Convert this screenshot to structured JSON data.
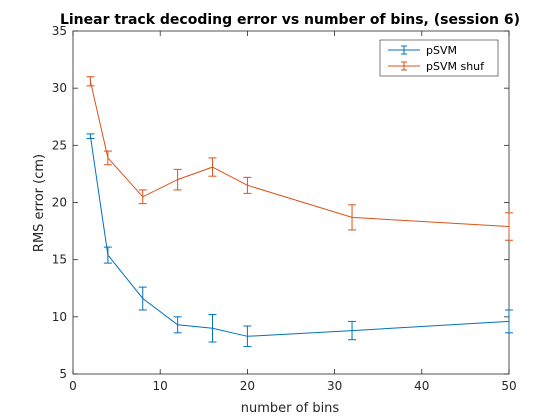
{
  "chart_data": {
    "type": "line",
    "title": "Linear track decoding error vs number of bins, (session 6)",
    "xlabel": "number of bins",
    "ylabel": "RMS error (cm)",
    "xlim": [
      0,
      50
    ],
    "ylim": [
      5,
      35
    ],
    "xticks": [
      0,
      10,
      20,
      30,
      40,
      50
    ],
    "yticks": [
      5,
      10,
      15,
      20,
      25,
      30,
      35
    ],
    "grid": false,
    "legend_position": "top-right",
    "x": [
      2,
      4,
      8,
      12,
      16,
      20,
      32,
      50
    ],
    "series": [
      {
        "name": "pSVM",
        "color": "#0072BD",
        "values": [
          25.8,
          15.4,
          11.6,
          9.3,
          9.0,
          8.3,
          8.8,
          9.6
        ],
        "errors": [
          0.2,
          0.7,
          1.0,
          0.7,
          1.2,
          0.9,
          0.8,
          1.0
        ]
      },
      {
        "name": "pSVM shuf",
        "color": "#D95319",
        "values": [
          30.6,
          23.9,
          20.5,
          22.0,
          23.1,
          21.5,
          18.7,
          17.9
        ],
        "errors": [
          0.4,
          0.6,
          0.6,
          0.9,
          0.8,
          0.7,
          1.1,
          1.2
        ]
      }
    ]
  }
}
